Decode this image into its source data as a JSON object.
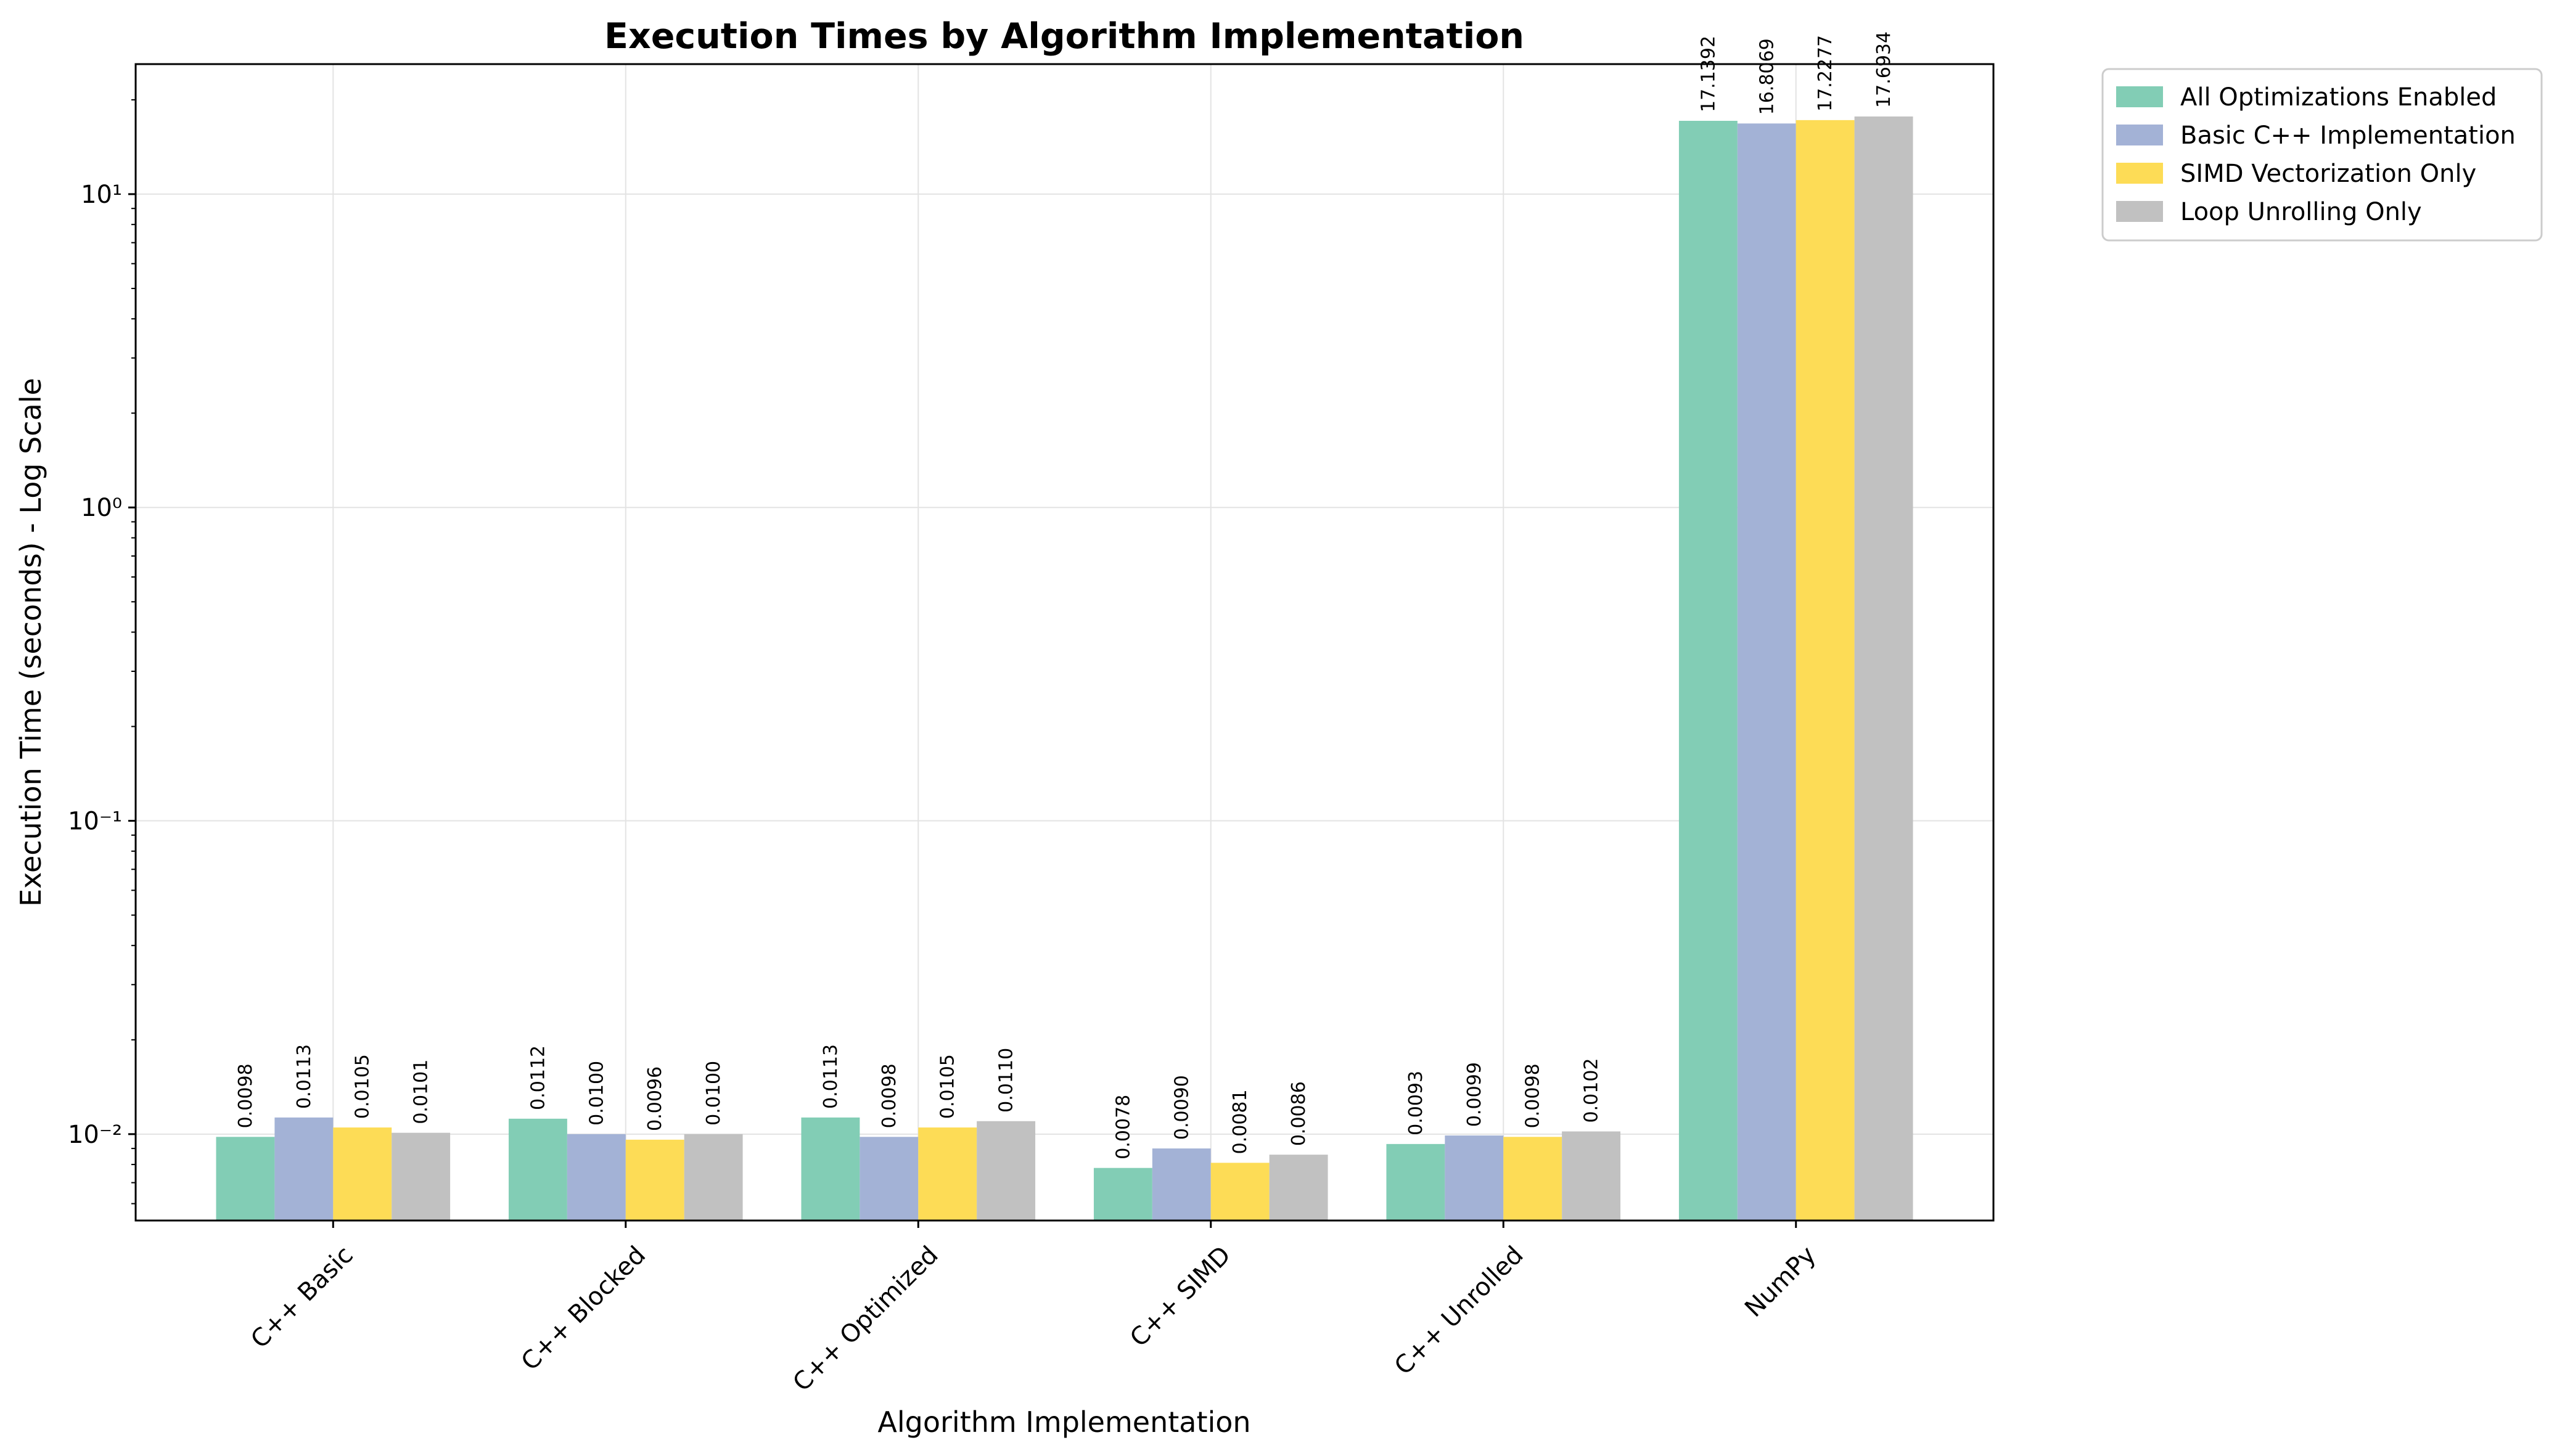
{
  "chart_data": {
    "type": "bar",
    "title": "Execution Times by Algorithm Implementation",
    "xlabel": "Algorithm Implementation",
    "ylabel": "Execution Time (seconds) - Log Scale",
    "yscale": "log",
    "ylim": [
      0.0053,
      26
    ],
    "y_ticks": [
      {
        "value": 0.01,
        "label": "10⁻²"
      },
      {
        "value": 0.1,
        "label": "10⁻¹"
      },
      {
        "value": 1,
        "label": "10⁰"
      },
      {
        "value": 10,
        "label": "10¹"
      }
    ],
    "grid": true,
    "legend_position": "outside-top-right",
    "categories": [
      "C++ Basic",
      "C++ Blocked",
      "C++ Optimized",
      "C++ SIMD",
      "C++ Unrolled",
      "NumPy"
    ],
    "series": [
      {
        "name": "All Optimizations Enabled",
        "color": "#82cdb5",
        "values": [
          0.0098,
          0.0112,
          0.0113,
          0.0078,
          0.0093,
          17.1392
        ],
        "labels": [
          "0.0098",
          "0.0112",
          "0.0113",
          "0.0078",
          "0.0093",
          "17.1392"
        ]
      },
      {
        "name": "Basic C++ Implementation",
        "color": "#a3b2d6",
        "values": [
          0.0113,
          0.01,
          0.0098,
          0.009,
          0.0099,
          16.8069
        ],
        "labels": [
          "0.0113",
          "0.0100",
          "0.0098",
          "0.0090",
          "0.0099",
          "16.8069"
        ]
      },
      {
        "name": "SIMD Vectorization Only",
        "color": "#fddc56",
        "values": [
          0.0105,
          0.0096,
          0.0105,
          0.0081,
          0.0098,
          17.2277
        ],
        "labels": [
          "0.0105",
          "0.0096",
          "0.0105",
          "0.0081",
          "0.0098",
          "17.2277"
        ]
      },
      {
        "name": "Loop Unrolling Only",
        "color": "#c1c1c1",
        "values": [
          0.0101,
          0.01,
          0.011,
          0.0086,
          0.0102,
          17.6934
        ],
        "labels": [
          "0.0101",
          "0.0100",
          "0.0110",
          "0.0086",
          "0.0102",
          "17.6934"
        ]
      }
    ]
  }
}
